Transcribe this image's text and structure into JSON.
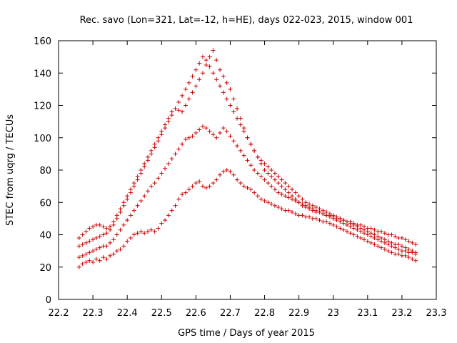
{
  "chart_data": {
    "type": "scatter",
    "title": "Rec. savo (Lon=321, Lat=-12, h=HE), days 022-023, 2015, window 001",
    "xlabel": "GPS time / Days of year 2015",
    "ylabel": "STEC from uqrg / TECUs",
    "xlim": [
      22.2,
      23.3
    ],
    "ylim": [
      0,
      160
    ],
    "xticks": [
      "22.2",
      "22.3",
      "22.4",
      "22.5",
      "22.6",
      "22.7",
      "22.8",
      "22.9",
      "23",
      "23.1",
      "23.2",
      "23.3"
    ],
    "yticks": [
      "0",
      "20",
      "40",
      "60",
      "80",
      "100",
      "120",
      "140",
      "160"
    ],
    "grid": false,
    "marker": "+",
    "color": "#cc0000",
    "series": [
      {
        "x": [
          22.26,
          22.27,
          22.28,
          22.29,
          22.3,
          22.31,
          22.32,
          22.33,
          22.34,
          22.35,
          22.36,
          22.37,
          22.38,
          22.39,
          22.4,
          22.41,
          22.42,
          22.43,
          22.44,
          22.45,
          22.46,
          22.47,
          22.48,
          22.49,
          22.5,
          22.51,
          22.52,
          22.53,
          22.54,
          22.55,
          22.56,
          22.57,
          22.58,
          22.59,
          22.6,
          22.61,
          22.62,
          22.63,
          22.64,
          22.65,
          22.66,
          22.67,
          22.68,
          22.69,
          22.7,
          22.71,
          22.72,
          22.73,
          22.74,
          22.75,
          22.76,
          22.77,
          22.78,
          22.79,
          22.8,
          22.81,
          22.82,
          22.83,
          22.84,
          22.85,
          22.86,
          22.87,
          22.88,
          22.89,
          22.9,
          22.91,
          22.92,
          22.93,
          22.94,
          22.95,
          22.96,
          22.97,
          22.98,
          22.99,
          23.0,
          23.01,
          23.02,
          23.03,
          23.04,
          23.05,
          23.06,
          23.07,
          23.08,
          23.09,
          23.1,
          23.11,
          23.12,
          23.13,
          23.14,
          23.15,
          23.16,
          23.17,
          23.18,
          23.19,
          23.2,
          23.21,
          23.22,
          23.23,
          23.24
        ],
        "y_layers": [
          [
            20,
            22,
            23,
            24,
            23,
            25,
            24,
            26,
            25,
            27,
            28,
            30,
            31,
            33,
            36,
            38,
            40,
            41,
            42,
            41,
            42,
            43,
            42,
            44,
            47,
            49,
            52,
            55,
            58,
            62,
            65,
            66,
            68,
            70,
            72,
            73,
            70,
            69,
            70,
            72,
            74,
            77,
            79,
            80,
            79,
            77,
            74,
            72,
            70,
            69,
            68,
            66,
            64,
            62,
            61,
            60,
            59,
            58,
            57,
            56,
            55,
            55,
            54,
            53,
            52,
            52,
            51,
            51,
            50,
            50,
            49,
            48,
            48,
            47,
            46,
            45,
            44,
            43,
            42,
            41,
            40,
            39,
            38,
            37,
            36,
            35,
            34,
            33,
            32,
            31,
            30,
            29,
            28,
            28,
            27,
            27,
            26,
            25,
            24
          ],
          [
            26,
            27,
            28,
            29,
            30,
            31,
            32,
            33,
            33,
            35,
            37,
            40,
            43,
            46,
            49,
            52,
            55,
            58,
            61,
            64,
            67,
            70,
            72,
            75,
            78,
            81,
            84,
            87,
            90,
            93,
            96,
            99,
            100,
            101,
            103,
            105,
            107,
            106,
            104,
            102,
            100,
            103,
            106,
            104,
            101,
            98,
            95,
            92,
            89,
            86,
            83,
            80,
            78,
            76,
            74,
            72,
            70,
            68,
            66,
            65,
            64,
            63,
            62,
            61,
            60,
            59,
            58,
            57,
            56,
            55,
            54,
            53,
            52,
            51,
            50,
            49,
            48,
            47,
            46,
            45,
            44,
            43,
            42,
            41,
            40,
            39,
            38,
            37,
            36,
            35,
            34,
            33,
            32,
            31,
            30,
            30,
            29,
            29,
            28
          ],
          [
            33,
            34,
            35,
            36,
            37,
            38,
            39,
            40,
            41,
            43,
            46,
            50,
            54,
            58,
            62,
            66,
            70,
            74,
            78,
            82,
            86,
            90,
            94,
            98,
            102,
            106,
            110,
            114,
            118,
            122,
            126,
            130,
            134,
            138,
            142,
            146,
            150,
            148,
            144,
            140,
            136,
            132,
            128,
            124,
            120,
            116,
            112,
            108,
            104,
            100,
            96,
            92,
            88,
            86,
            84,
            82,
            80,
            78,
            76,
            74,
            72,
            70,
            68,
            66,
            64,
            62,
            60,
            59,
            58,
            57,
            56,
            55,
            54,
            53,
            52,
            51,
            50,
            49,
            48,
            47,
            46,
            45,
            44,
            43,
            42,
            41,
            40,
            39,
            38,
            37,
            36,
            35,
            34,
            34,
            33,
            32,
            31,
            30,
            29
          ],
          [
            38,
            40,
            42,
            44,
            45,
            46,
            46,
            45,
            44,
            45,
            48,
            52,
            56,
            60,
            64,
            68,
            72,
            76,
            80,
            84,
            88,
            92,
            96,
            100,
            104,
            108,
            112,
            116,
            118,
            117,
            116,
            120,
            124,
            128,
            132,
            136,
            140,
            145,
            150,
            154,
            148,
            142,
            138,
            134,
            130,
            124,
            118,
            112,
            106,
            100,
            96,
            92,
            88,
            84,
            80,
            78,
            76,
            74,
            72,
            70,
            68,
            66,
            64,
            62,
            60,
            58,
            57,
            56,
            55,
            54,
            54,
            53,
            52,
            52,
            51,
            50,
            50,
            49,
            48,
            48,
            47,
            46,
            46,
            45,
            44,
            44,
            43,
            42,
            42,
            41,
            40,
            40,
            39,
            38,
            38,
            37,
            36,
            35,
            34
          ]
        ]
      }
    ]
  }
}
